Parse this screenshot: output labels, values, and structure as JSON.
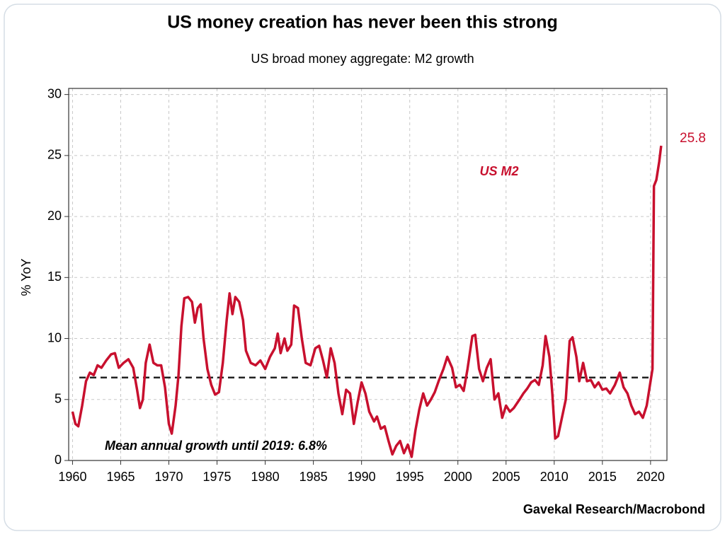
{
  "chart_data": {
    "type": "line",
    "title": "US money creation has never been this strong",
    "subtitle": "US broad money aggregate: M2 growth",
    "y_label": "% YoY",
    "source": "Gavekal Research/Macrobond",
    "xlim": [
      1959.6,
      2021.7
    ],
    "ylim": [
      0,
      30.5
    ],
    "xticks": [
      1960,
      1965,
      1970,
      1975,
      1980,
      1985,
      1990,
      1995,
      2000,
      2005,
      2010,
      2015,
      2020
    ],
    "yticks": [
      0,
      5,
      10,
      15,
      20,
      25,
      30
    ],
    "grid": true,
    "x": [
      1960.0,
      1960.3,
      1960.6,
      1961.0,
      1961.4,
      1961.8,
      1962.2,
      1962.6,
      1963.0,
      1963.5,
      1964.0,
      1964.4,
      1964.8,
      1965.3,
      1965.8,
      1966.3,
      1966.7,
      1967.0,
      1967.3,
      1967.6,
      1968.0,
      1968.4,
      1968.8,
      1969.2,
      1969.6,
      1970.0,
      1970.3,
      1970.7,
      1971.0,
      1971.3,
      1971.6,
      1972.0,
      1972.4,
      1972.7,
      1973.0,
      1973.3,
      1973.6,
      1974.0,
      1974.4,
      1974.8,
      1975.2,
      1975.6,
      1976.0,
      1976.3,
      1976.6,
      1976.9,
      1977.3,
      1977.7,
      1978.0,
      1978.5,
      1979.0,
      1979.5,
      1980.0,
      1980.5,
      1981.0,
      1981.3,
      1981.6,
      1982.0,
      1982.3,
      1982.7,
      1983.0,
      1983.4,
      1983.8,
      1984.2,
      1984.7,
      1985.2,
      1985.6,
      1986.0,
      1986.4,
      1986.8,
      1987.2,
      1987.6,
      1988.0,
      1988.4,
      1988.8,
      1989.2,
      1989.6,
      1990.0,
      1990.4,
      1990.8,
      1991.3,
      1991.6,
      1992.0,
      1992.4,
      1992.8,
      1993.2,
      1993.6,
      1994.0,
      1994.4,
      1994.8,
      1995.2,
      1995.6,
      1996.0,
      1996.4,
      1996.8,
      1997.2,
      1997.6,
      1998.0,
      1998.5,
      1998.9,
      1999.4,
      1999.8,
      2000.2,
      2000.6,
      2001.0,
      2001.5,
      2001.8,
      2002.2,
      2002.6,
      2003.0,
      2003.4,
      2003.8,
      2004.2,
      2004.6,
      2005.0,
      2005.4,
      2005.8,
      2006.4,
      2006.8,
      2007.2,
      2007.6,
      2008.0,
      2008.4,
      2008.8,
      2009.1,
      2009.5,
      2009.8,
      2010.1,
      2010.4,
      2010.8,
      2011.2,
      2011.6,
      2011.9,
      2012.3,
      2012.6,
      2013.0,
      2013.4,
      2013.8,
      2014.2,
      2014.6,
      2015.0,
      2015.4,
      2015.8,
      2016.3,
      2016.8,
      2017.2,
      2017.6,
      2018.0,
      2018.4,
      2018.8,
      2019.2,
      2019.6,
      2019.9,
      2020.2,
      2020.35,
      2020.6,
      2020.9,
      2021.1
    ],
    "series": [
      {
        "name": "US M2",
        "color": "#c8102e",
        "values": [
          4.0,
          3.0,
          2.8,
          4.5,
          6.5,
          7.2,
          7.0,
          7.8,
          7.6,
          8.2,
          8.7,
          8.8,
          7.6,
          8.0,
          8.3,
          7.6,
          5.8,
          4.3,
          5.0,
          8.0,
          9.5,
          8.0,
          7.8,
          7.8,
          6.0,
          3.0,
          2.2,
          4.5,
          7.0,
          11.0,
          13.3,
          13.4,
          13.0,
          11.3,
          12.5,
          12.8,
          10.0,
          7.5,
          6.2,
          5.4,
          5.6,
          8.0,
          11.5,
          13.7,
          12.0,
          13.4,
          13.0,
          11.5,
          9.0,
          8.0,
          7.8,
          8.2,
          7.5,
          8.5,
          9.2,
          10.4,
          8.8,
          10.0,
          9.0,
          9.5,
          12.7,
          12.5,
          10.0,
          8.0,
          7.8,
          9.2,
          9.4,
          8.2,
          6.8,
          9.2,
          8.0,
          5.5,
          3.8,
          5.8,
          5.5,
          3.0,
          4.8,
          6.4,
          5.5,
          4.0,
          3.2,
          3.6,
          2.6,
          2.8,
          1.6,
          0.5,
          1.2,
          1.6,
          0.6,
          1.3,
          0.3,
          2.5,
          4.2,
          5.5,
          4.5,
          5.0,
          5.6,
          6.5,
          7.5,
          8.5,
          7.6,
          6.0,
          6.2,
          5.7,
          7.5,
          10.2,
          10.3,
          7.5,
          6.5,
          7.6,
          8.3,
          5.0,
          5.5,
          3.5,
          4.5,
          4.0,
          4.3,
          5.0,
          5.5,
          5.9,
          6.4,
          6.6,
          6.2,
          7.8,
          10.2,
          8.5,
          5.5,
          1.8,
          2.0,
          3.5,
          5.0,
          9.8,
          10.1,
          8.5,
          6.5,
          8.0,
          6.5,
          6.6,
          6.0,
          6.4,
          5.8,
          5.9,
          5.5,
          6.2,
          7.2,
          6.0,
          5.5,
          4.5,
          3.8,
          4.0,
          3.5,
          4.5,
          6.0,
          7.5,
          22.5,
          23.0,
          24.5,
          25.8
        ]
      }
    ],
    "mean_line": {
      "value": 6.8,
      "label": "Mean annual growth until 2019: 6.8%"
    }
  }
}
